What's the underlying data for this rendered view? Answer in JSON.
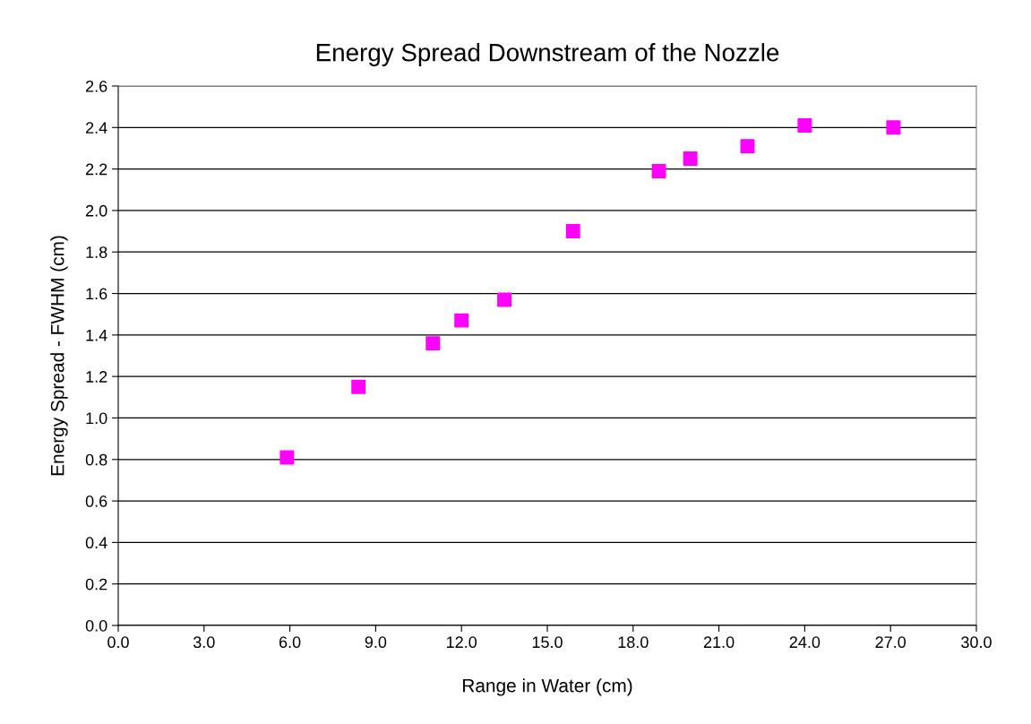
{
  "chart_data": {
    "type": "scatter",
    "title": "Energy Spread Downstream of the Nozzle",
    "xlabel": "Range in Water (cm)",
    "ylabel": "Energy Spread - FWHM (cm)",
    "x": [
      5.9,
      8.4,
      11.0,
      12.0,
      13.5,
      15.9,
      18.9,
      20.0,
      22.0,
      24.0,
      27.1
    ],
    "series": [
      {
        "color": "#ff00ff",
        "values": [
          0.81,
          1.15,
          1.36,
          1.47,
          1.57,
          1.9,
          2.19,
          2.25,
          2.31,
          2.41,
          2.4
        ]
      }
    ],
    "marker": "square",
    "grid": "y",
    "legend": false,
    "xlim": [
      0,
      30
    ],
    "xticks": [
      {
        "value": 0,
        "label": "0.0"
      },
      {
        "value": 3,
        "label": "3.0"
      },
      {
        "value": 6,
        "label": "6.0"
      },
      {
        "value": 9,
        "label": "9.0"
      },
      {
        "value": 12,
        "label": "12.0"
      },
      {
        "value": 15,
        "label": "15.0"
      },
      {
        "value": 18,
        "label": "18.0"
      },
      {
        "value": 21,
        "label": "21.0"
      },
      {
        "value": 24,
        "label": "24.0"
      },
      {
        "value": 27,
        "label": "27.0"
      },
      {
        "value": 30,
        "label": "30.0"
      }
    ],
    "ylim": [
      0,
      2.6
    ],
    "yticks": [
      {
        "value": 0,
        "label": "0.0"
      },
      {
        "value": 0.2,
        "label": "0.2"
      },
      {
        "value": 0.4,
        "label": "0.4"
      },
      {
        "value": 0.6,
        "label": "0.6"
      },
      {
        "value": 0.8,
        "label": "0.8"
      },
      {
        "value": 1.0,
        "label": "1.0"
      },
      {
        "value": 1.2,
        "label": "1.2"
      },
      {
        "value": 1.4,
        "label": "1.4"
      },
      {
        "value": 1.6,
        "label": "1.6"
      },
      {
        "value": 1.8,
        "label": "1.8"
      },
      {
        "value": 2.0,
        "label": "2.0"
      },
      {
        "value": 2.2,
        "label": "2.2"
      },
      {
        "value": 2.4,
        "label": "2.4"
      },
      {
        "value": 2.6,
        "label": "2.6"
      }
    ]
  }
}
